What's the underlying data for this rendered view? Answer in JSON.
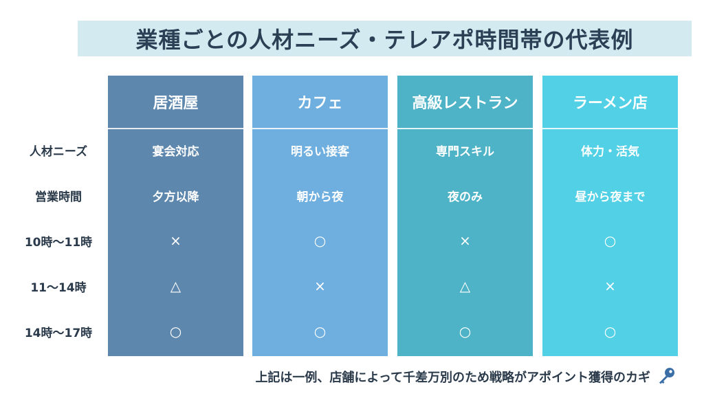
{
  "title": "業種ごとの人材ニーズ・テレアポ時間帯の代表例",
  "row_labels": [
    "人材ニーズ",
    "営業時間",
    "10時〜11時",
    "11〜14時",
    "14時〜17時"
  ],
  "columns": [
    {
      "name": "居酒屋",
      "color": "#5e87ad",
      "cells": [
        "宴会対応",
        "夕方以降",
        "×",
        "△",
        "○"
      ]
    },
    {
      "name": "カフェ",
      "color": "#6eafdf",
      "cells": [
        "明るい接客",
        "朝から夜",
        "○",
        "×",
        "○"
      ]
    },
    {
      "name": "高級レストラン",
      "color": "#4eb3c6",
      "cells": [
        "専門スキル",
        "夜のみ",
        "×",
        "△",
        "○"
      ]
    },
    {
      "name": "ラーメン店",
      "color": "#52d0e5",
      "cells": [
        "体力・活気",
        "昼から夜まで",
        "○",
        "×",
        "○"
      ]
    }
  ],
  "footer": {
    "text": "上記は一例、店舗によって千差万別のため戦略がアポイント獲得のカギ",
    "icon": "key-icon"
  }
}
